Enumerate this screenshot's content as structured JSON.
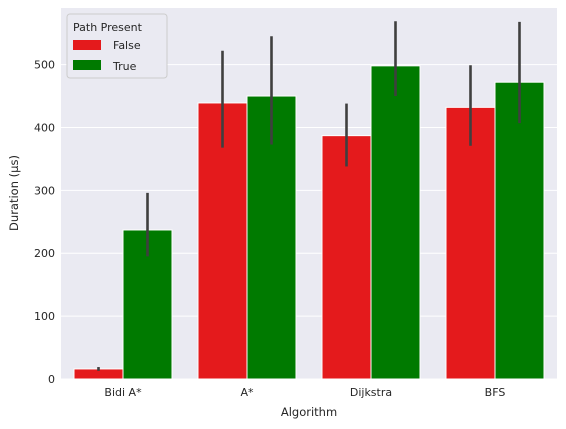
{
  "chart_data": {
    "type": "bar",
    "categories": [
      "Bidi A*",
      "A*",
      "Dijkstra",
      "BFS"
    ],
    "xlabel": "Algorithm",
    "ylabel": "Duration (μs)",
    "ylim": [
      0,
      590
    ],
    "yticks": [
      0,
      100,
      200,
      300,
      400,
      500
    ],
    "grid": true,
    "legend": {
      "title": "Path Present",
      "position": "top-left",
      "entries": [
        "False",
        "True"
      ]
    },
    "series": [
      {
        "name": "False",
        "color": "#e41a1c",
        "values": [
          16,
          439,
          387,
          432
        ],
        "error_low": [
          13,
          368,
          338,
          371
        ],
        "error_high": [
          19,
          522,
          438,
          499
        ]
      },
      {
        "name": "True",
        "color": "#007a00",
        "values": [
          237,
          450,
          498,
          472
        ],
        "error_low": [
          195,
          373,
          450,
          407
        ],
        "error_high": [
          296,
          545,
          569,
          568
        ]
      }
    ],
    "background_color": "#eaeaf2",
    "error_color": "#3f3f3f"
  }
}
